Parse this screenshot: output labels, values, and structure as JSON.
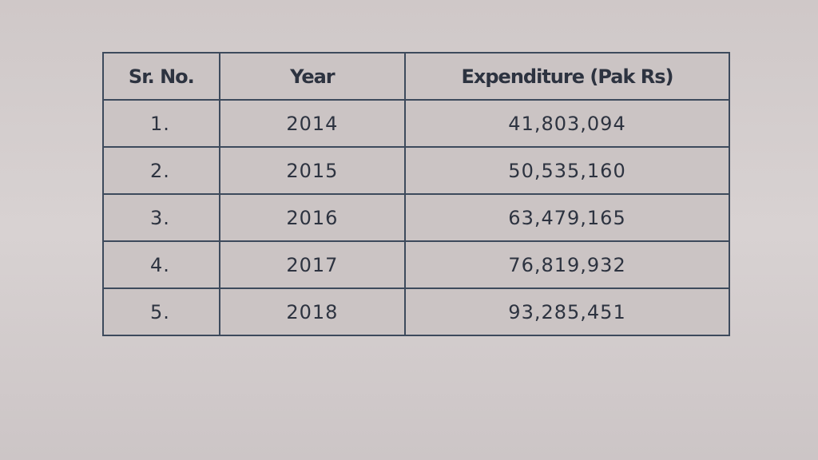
{
  "table": {
    "header": [
      "Sr. No.",
      "Year",
      "Expenditure (Pak Rs)"
    ],
    "rows": [
      [
        "1.",
        "2014",
        "41,803,094"
      ],
      [
        "2.",
        "2015",
        "50,535,160"
      ],
      [
        "3.",
        "2016",
        "63,479,165"
      ],
      [
        "4.",
        "2017",
        "76,819,932"
      ],
      [
        "5.",
        "2018",
        "93,285,451"
      ]
    ]
  }
}
